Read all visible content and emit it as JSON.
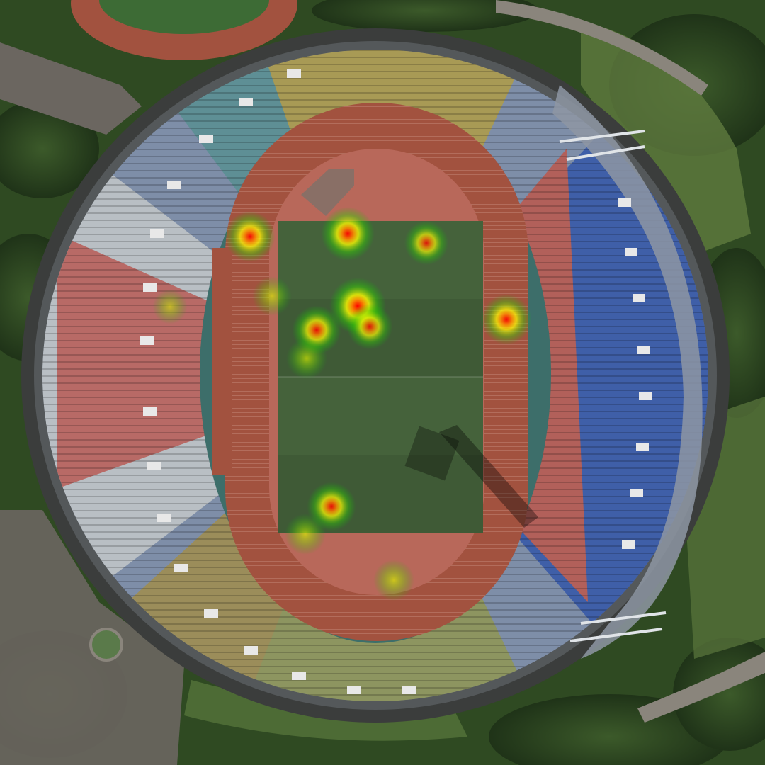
{
  "scene": {
    "subject": "aerial-stadium",
    "colors": {
      "vegetation": "#2f4a22",
      "vegetation_light": "#5f7a3e",
      "path": "#6b6660",
      "road": "#4a4946",
      "outer_ring": "#3b3d3c",
      "stand_white": "#b9bfc4",
      "stand_red": "#b86a66",
      "stand_blue": "#3f5fa8",
      "stand_gray_blue": "#7e8ea8",
      "stand_yellow": "#a89a55",
      "stand_teal": "#5e8f95",
      "infield_teal": "#3d6e6a",
      "track": "#a2523f",
      "track_end": "#b8685a",
      "pitch": "#3f5a36",
      "pitch_light": "#4b6a40"
    }
  },
  "heatmap": {
    "palette": [
      "#00c800",
      "#ffff00",
      "#ff0000"
    ],
    "spots": [
      {
        "id": "spot-1",
        "intensity": 0.8
      },
      {
        "id": "spot-2",
        "intensity": 0.9
      },
      {
        "id": "spot-3",
        "intensity": 0.6
      },
      {
        "id": "spot-4",
        "intensity": 0.45
      },
      {
        "id": "spot-5",
        "intensity": 0.3
      },
      {
        "id": "spot-6",
        "intensity": 1.0
      },
      {
        "id": "spot-7",
        "intensity": 0.75
      },
      {
        "id": "spot-8",
        "intensity": 0.65
      },
      {
        "id": "spot-9",
        "intensity": 0.5
      },
      {
        "id": "spot-10",
        "intensity": 0.8
      },
      {
        "id": "spot-11",
        "intensity": 0.75
      },
      {
        "id": "spot-12",
        "intensity": 0.5
      },
      {
        "id": "spot-13",
        "intensity": 0.5
      }
    ]
  }
}
